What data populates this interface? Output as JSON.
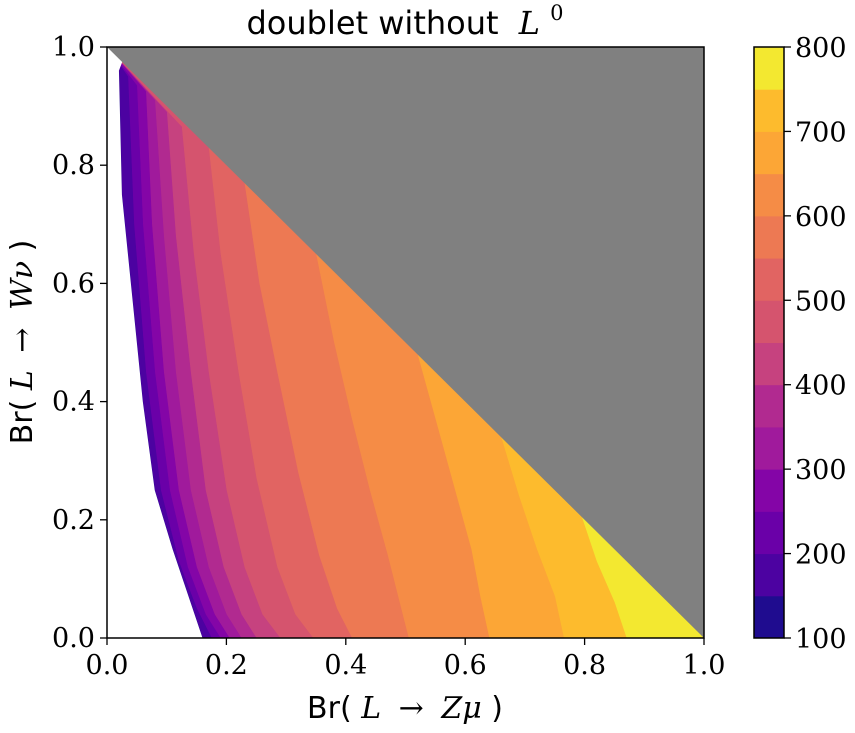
{
  "chart_data": {
    "type": "heatmap",
    "subtype": "filled-contour",
    "title_text": "doublet without",
    "title_math": "L",
    "title_sup": "0",
    "xlabel": {
      "prefix": "Br(",
      "var": "L",
      "arrow": "→",
      "target": "Zμ",
      "suffix": ")"
    },
    "ylabel": {
      "prefix": "Br(",
      "var": "L",
      "arrow": "→",
      "target": "Wν",
      "suffix": ")"
    },
    "xlim": [
      0.0,
      1.0
    ],
    "ylim": [
      0.0,
      1.0
    ],
    "xticks": [
      "0.0",
      "0.2",
      "0.4",
      "0.6",
      "0.8",
      "1.0"
    ],
    "yticks": [
      "0.0",
      "0.2",
      "0.4",
      "0.6",
      "0.8",
      "1.0"
    ],
    "colormap": "plasma",
    "masked_region": "Br(Zμ) + Br(Wν) > 1",
    "masked_color": "#808080",
    "grid": false,
    "colorbar": {
      "ticks": [
        "100",
        "200",
        "300",
        "400",
        "500",
        "600",
        "700",
        "800"
      ],
      "tick_values": [
        100,
        200,
        300,
        400,
        500,
        600,
        700,
        800
      ],
      "levels": [
        100,
        150,
        200,
        250,
        300,
        350,
        400,
        450,
        500,
        550,
        600,
        650,
        700,
        750,
        800
      ],
      "colors": [
        "#1f0c8f",
        "#4c02a1",
        "#6a00a8",
        "#8405a7",
        "#a01a9c",
        "#b12a90",
        "#c6427f",
        "#d5546e",
        "#e16462",
        "#ed7953",
        "#f58c46",
        "#fca636",
        "#fdbb2d",
        "#f3e830"
      ]
    },
    "contour_boundaries": [
      {
        "level": 150,
        "points": [
          [
            0.02,
            0.96
          ],
          [
            0.025,
            0.75
          ],
          [
            0.04,
            0.6
          ],
          [
            0.06,
            0.4
          ],
          [
            0.08,
            0.25
          ],
          [
            0.11,
            0.15
          ],
          [
            0.14,
            0.06
          ],
          [
            0.16,
            0.0
          ]
        ]
      },
      {
        "level": 200,
        "points": [
          [
            0.035,
            0.95
          ],
          [
            0.045,
            0.7
          ],
          [
            0.065,
            0.45
          ],
          [
            0.09,
            0.25
          ],
          [
            0.12,
            0.13
          ],
          [
            0.15,
            0.05
          ],
          [
            0.175,
            0.0
          ]
        ]
      },
      {
        "level": 250,
        "points": [
          [
            0.05,
            0.935
          ],
          [
            0.06,
            0.7
          ],
          [
            0.08,
            0.45
          ],
          [
            0.105,
            0.25
          ],
          [
            0.135,
            0.12
          ],
          [
            0.165,
            0.04
          ],
          [
            0.19,
            0.0
          ]
        ]
      },
      {
        "level": 300,
        "points": [
          [
            0.065,
            0.925
          ],
          [
            0.075,
            0.7
          ],
          [
            0.095,
            0.45
          ],
          [
            0.12,
            0.25
          ],
          [
            0.15,
            0.12
          ],
          [
            0.18,
            0.04
          ],
          [
            0.205,
            0.0
          ]
        ]
      },
      {
        "level": 350,
        "points": [
          [
            0.08,
            0.91
          ],
          [
            0.095,
            0.68
          ],
          [
            0.115,
            0.45
          ],
          [
            0.14,
            0.25
          ],
          [
            0.17,
            0.12
          ],
          [
            0.2,
            0.04
          ],
          [
            0.225,
            0.0
          ]
        ]
      },
      {
        "level": 400,
        "points": [
          [
            0.1,
            0.89
          ],
          [
            0.115,
            0.68
          ],
          [
            0.14,
            0.45
          ],
          [
            0.165,
            0.25
          ],
          [
            0.195,
            0.12
          ],
          [
            0.225,
            0.04
          ],
          [
            0.25,
            0.0
          ]
        ]
      },
      {
        "level": 450,
        "points": [
          [
            0.125,
            0.865
          ],
          [
            0.145,
            0.65
          ],
          [
            0.17,
            0.45
          ],
          [
            0.2,
            0.25
          ],
          [
            0.23,
            0.12
          ],
          [
            0.26,
            0.04
          ],
          [
            0.29,
            0.0
          ]
        ]
      },
      {
        "level": 500,
        "points": [
          [
            0.17,
            0.83
          ],
          [
            0.19,
            0.65
          ],
          [
            0.22,
            0.45
          ],
          [
            0.25,
            0.27
          ],
          [
            0.285,
            0.12
          ],
          [
            0.315,
            0.04
          ],
          [
            0.345,
            0.0
          ]
        ]
      },
      {
        "level": 550,
        "points": [
          [
            0.23,
            0.77
          ],
          [
            0.255,
            0.6
          ],
          [
            0.285,
            0.45
          ],
          [
            0.32,
            0.28
          ],
          [
            0.355,
            0.14
          ],
          [
            0.385,
            0.05
          ],
          [
            0.41,
            0.0
          ]
        ]
      },
      {
        "level": 600,
        "points": [
          [
            0.35,
            0.65
          ],
          [
            0.38,
            0.5
          ],
          [
            0.41,
            0.37
          ],
          [
            0.44,
            0.25
          ],
          [
            0.47,
            0.14
          ],
          [
            0.49,
            0.06
          ],
          [
            0.505,
            0.0
          ]
        ]
      },
      {
        "level": 650,
        "points": [
          [
            0.52,
            0.48
          ],
          [
            0.55,
            0.37
          ],
          [
            0.58,
            0.26
          ],
          [
            0.61,
            0.15
          ],
          [
            0.625,
            0.07
          ],
          [
            0.64,
            0.0
          ]
        ]
      },
      {
        "level": 700,
        "points": [
          [
            0.66,
            0.34
          ],
          [
            0.69,
            0.24
          ],
          [
            0.72,
            0.15
          ],
          [
            0.75,
            0.07
          ],
          [
            0.765,
            0.0
          ]
        ]
      },
      {
        "level": 750,
        "points": [
          [
            0.795,
            0.205
          ],
          [
            0.82,
            0.13
          ],
          [
            0.85,
            0.06
          ],
          [
            0.87,
            0.0
          ]
        ]
      }
    ]
  }
}
